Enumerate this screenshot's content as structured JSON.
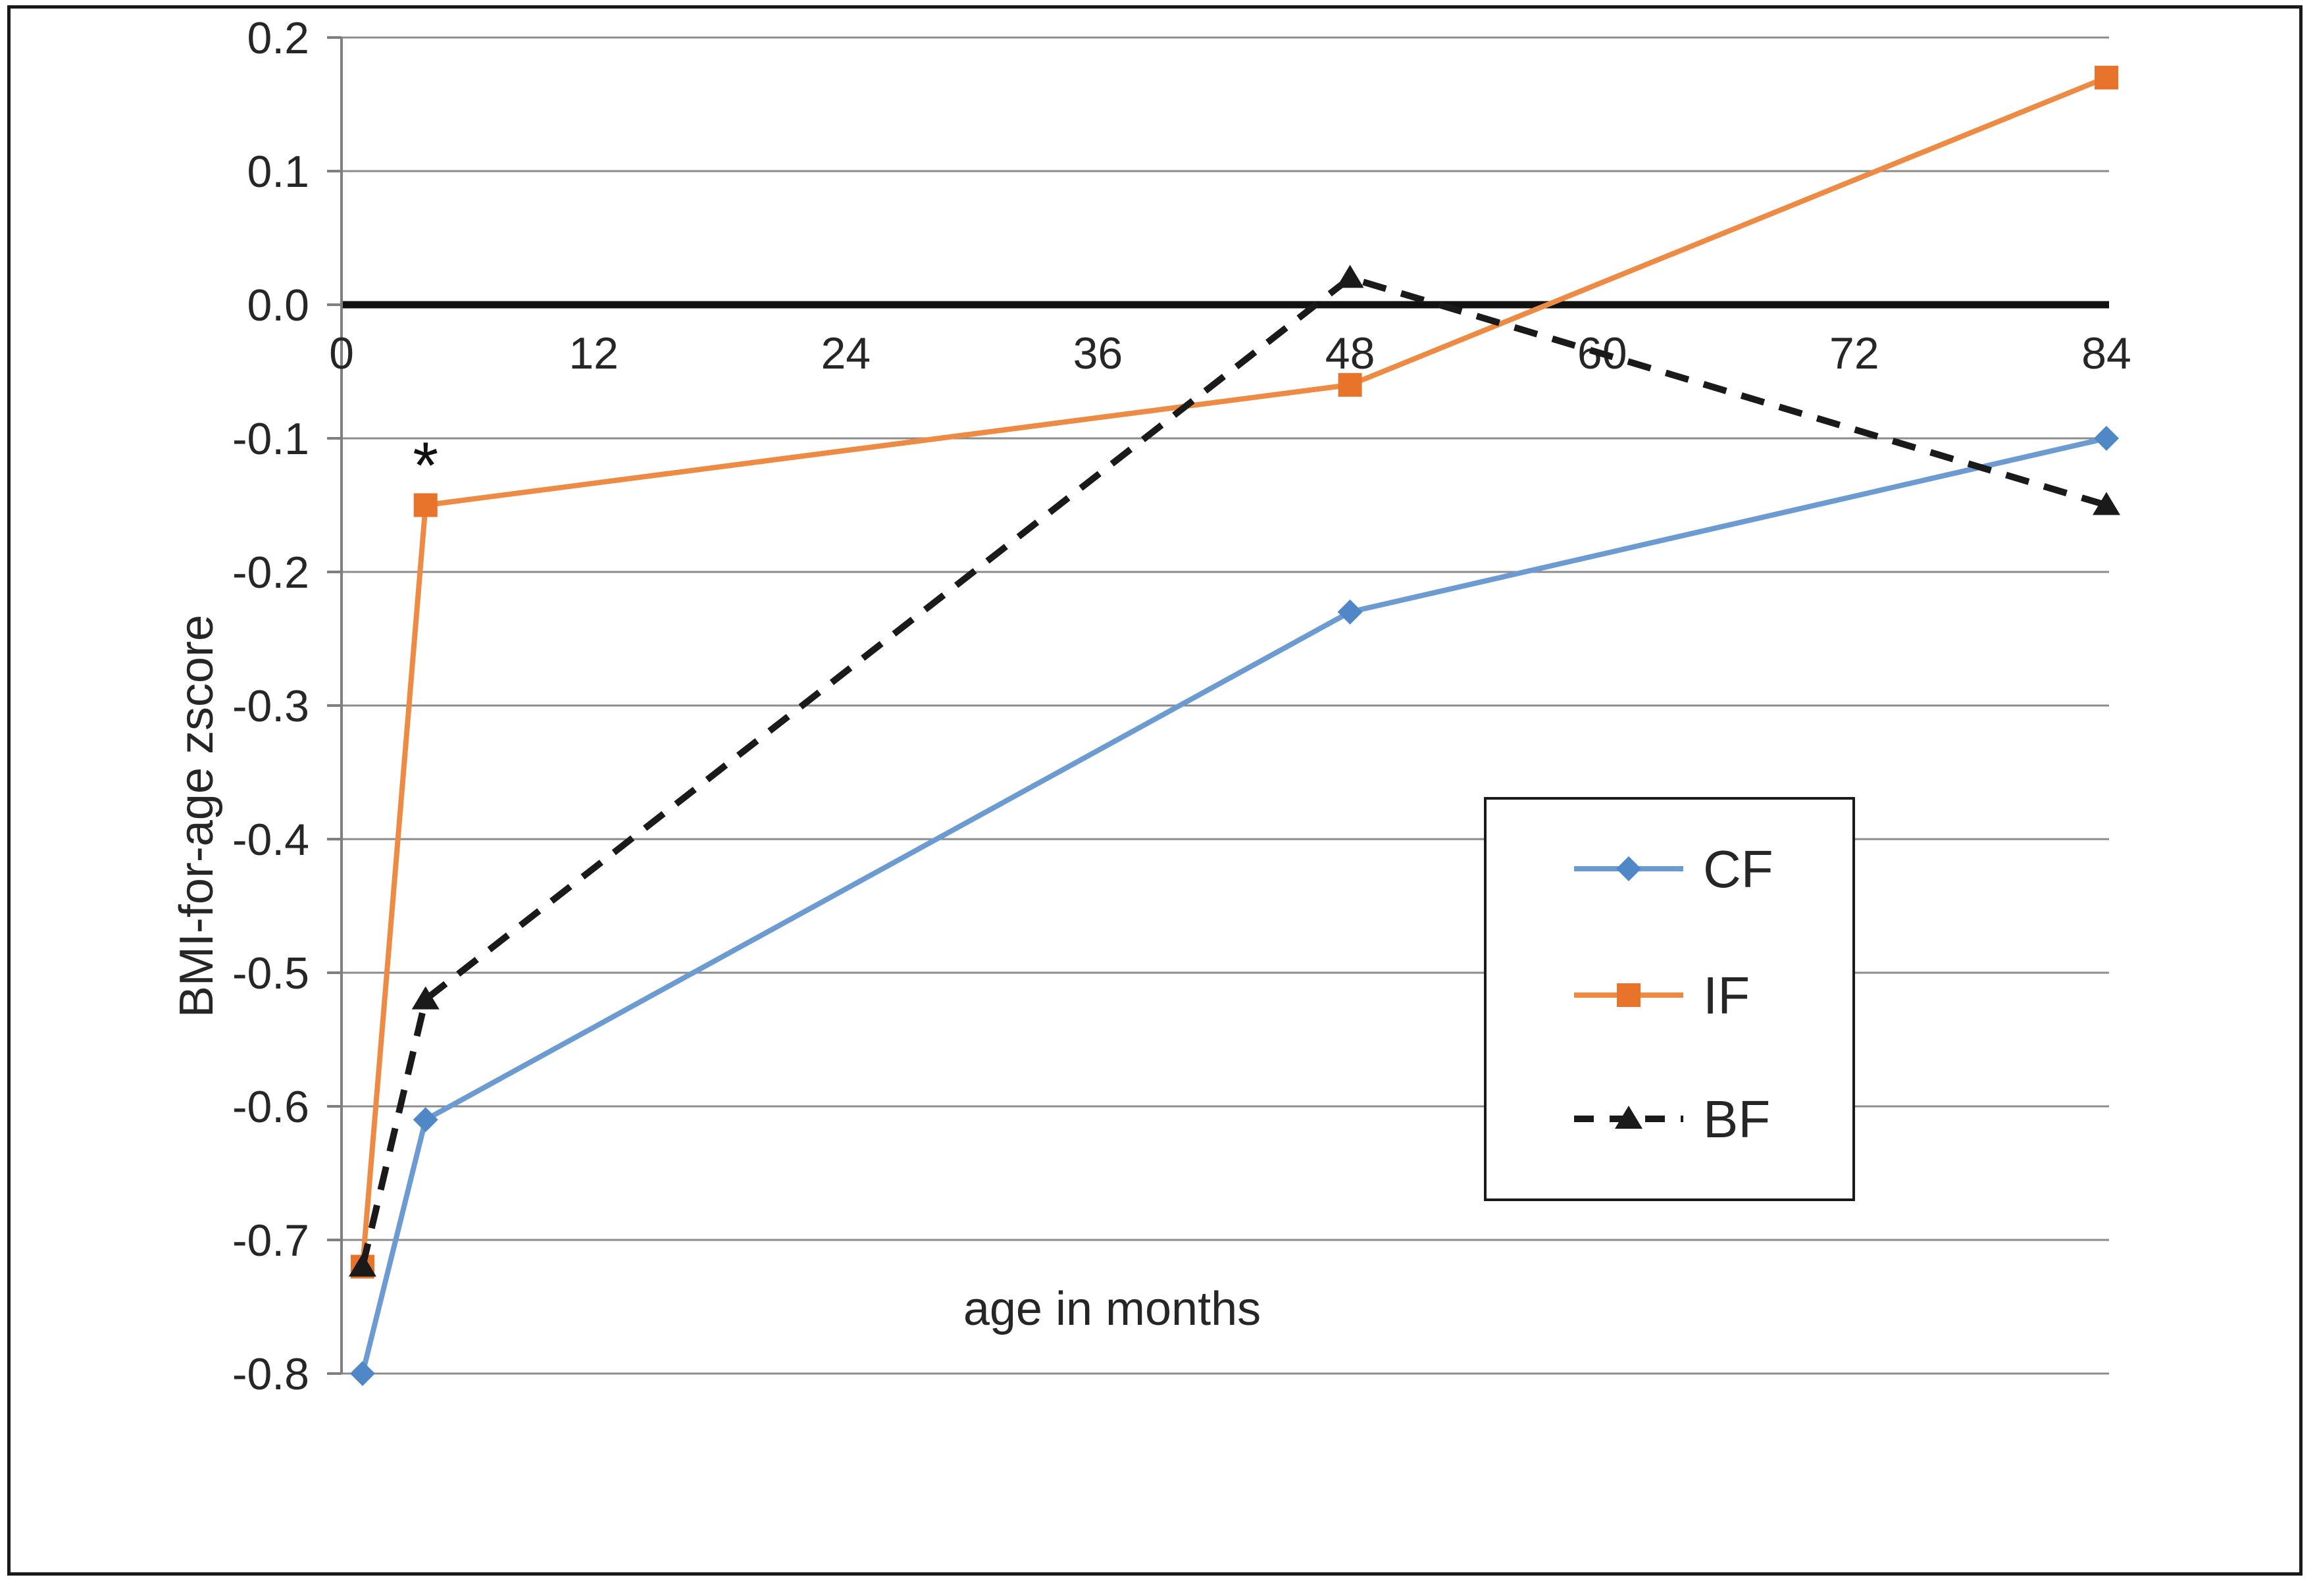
{
  "chart_data": {
    "type": "line",
    "title": "",
    "xlabel": "age in months",
    "ylabel": "BMI-for-age zscore",
    "x": [
      1,
      4,
      48,
      84
    ],
    "x_ticks": [
      0,
      12,
      24,
      36,
      48,
      60,
      72,
      84
    ],
    "y_ticks": [
      0.2,
      0.1,
      0.0,
      -0.1,
      -0.2,
      -0.3,
      -0.4,
      -0.5,
      -0.6,
      -0.7,
      -0.8
    ],
    "xlim": [
      0,
      84
    ],
    "ylim": [
      -0.8,
      0.2
    ],
    "grid": true,
    "zero_line": true,
    "series": [
      {
        "name": "CF",
        "values": [
          -0.8,
          -0.61,
          -0.23,
          -0.1
        ],
        "color": "#6C9BD2",
        "marker_color": "#4F87C7",
        "marker": "diamond",
        "dash": "solid"
      },
      {
        "name": "IF",
        "values": [
          -0.72,
          -0.15,
          -0.06,
          0.17
        ],
        "color": "#ED8B44",
        "marker_color": "#E8732A",
        "marker": "square",
        "dash": "solid"
      },
      {
        "name": "BF",
        "values": [
          -0.72,
          -0.52,
          0.02,
          -0.15
        ],
        "color": "#1a1a1a",
        "marker_color": "#1a1a1a",
        "marker": "triangle",
        "dash": "dashed"
      }
    ],
    "annotations": [
      {
        "text": "*",
        "x": 4,
        "y": -0.114
      }
    ],
    "legend": {
      "position": "middle-right",
      "entries": [
        "CF",
        "IF",
        "BF"
      ]
    },
    "colors": {
      "gridline": "#8C8C8C",
      "axis": "#7f7f7f",
      "zero_line": "#111111",
      "text": "#262626",
      "legend_border": "#1a1a1a",
      "background": "#ffffff"
    }
  }
}
